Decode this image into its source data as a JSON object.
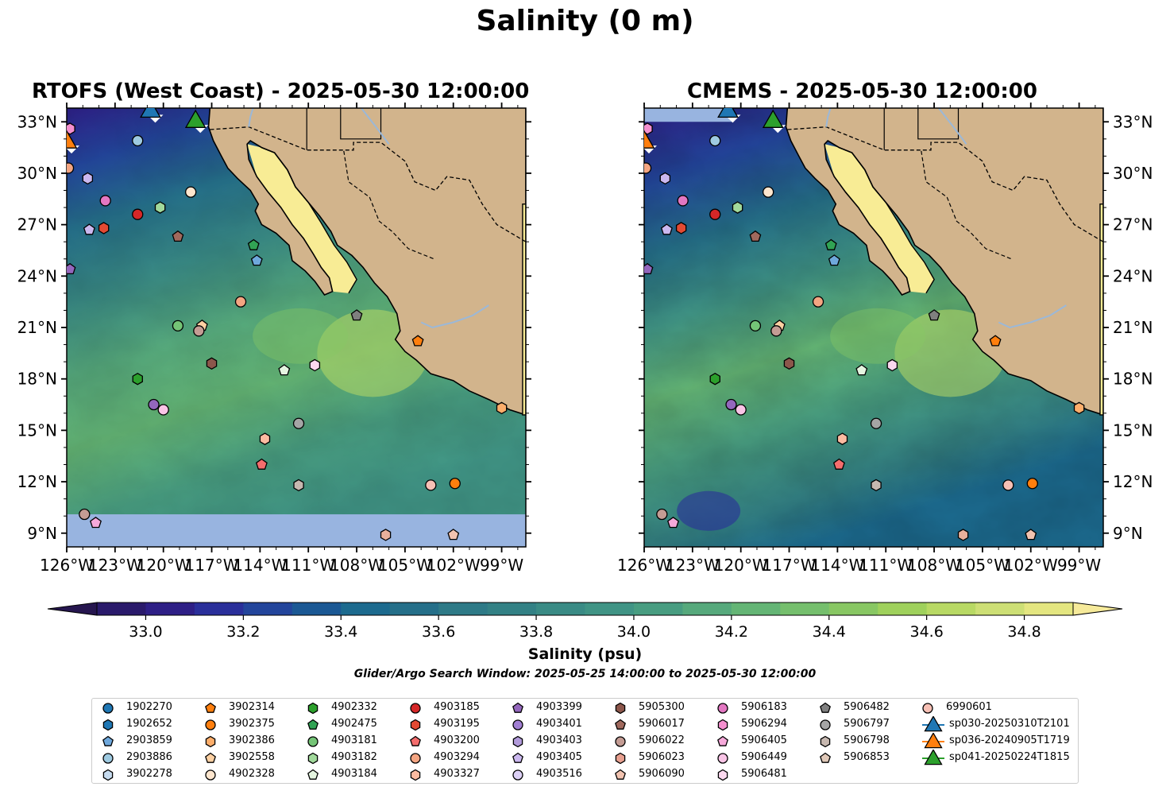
{
  "title": "Salinity (0 m)",
  "panels": [
    {
      "title": "RTOFS (West Coast) - 2025-05-30 12:00:00"
    },
    {
      "title": "CMEMS - 2025-05-30 12:00:00"
    }
  ],
  "axes": {
    "lon_ticks": [
      "126°W",
      "123°W",
      "120°W",
      "117°W",
      "114°W",
      "111°W",
      "108°W",
      "105°W",
      "102°W",
      "99°W"
    ],
    "lon_values": [
      -126,
      -123,
      -120,
      -117,
      -114,
      -111,
      -108,
      -105,
      -102,
      -99
    ],
    "lat_ticks": [
      "9°N",
      "12°N",
      "15°N",
      "18°N",
      "21°N",
      "24°N",
      "27°N",
      "30°N",
      "33°N"
    ],
    "lat_values": [
      9,
      12,
      15,
      18,
      21,
      24,
      27,
      30,
      33
    ],
    "lon_range": [
      -126,
      -97.5
    ],
    "lat_range": [
      8.2,
      33.8
    ]
  },
  "colorbar": {
    "label": "Salinity (psu)",
    "ticks": [
      "33.0",
      "33.2",
      "33.4",
      "33.6",
      "33.8",
      "34.0",
      "34.2",
      "34.4",
      "34.6",
      "34.8"
    ],
    "range": [
      32.9,
      34.9
    ],
    "extend": "both",
    "colors": [
      "#2a1a6b",
      "#2e1f86",
      "#2a2f9a",
      "#23459b",
      "#1b5894",
      "#1c6a8e",
      "#256f89",
      "#2e7a87",
      "#338185",
      "#3a8b85",
      "#409485",
      "#489d81",
      "#56a97c",
      "#64b575",
      "#75bf6d",
      "#88c763",
      "#9fd15c",
      "#b8d964",
      "#cddf75",
      "#e4e680"
    ],
    "extend_low_color": "#26164f",
    "extend_high_color": "#f6ea9a"
  },
  "search_window": "Glider/Argo Search Window: 2025-05-25 14:00:00 to 2025-05-30 12:00:00",
  "chart_data": {
    "type": "scatter",
    "title": "Salinity (0 m)",
    "colors": {
      "land": "#d2b48c",
      "nodata": "#98b4e0",
      "river": "#9bb8d8"
    },
    "legend_placement": "bottom",
    "floats": [
      {
        "id": "1902270",
        "marker": "circle",
        "color": "#1f77b4",
        "lon": null,
        "lat": null
      },
      {
        "id": "1902652",
        "marker": "hexagon",
        "color": "#1f77b4",
        "lon": null,
        "lat": null
      },
      {
        "id": "2903859",
        "marker": "pentagon",
        "color": "#6fa8dc",
        "lon": -114.2,
        "lat": 24.9
      },
      {
        "id": "2903886",
        "marker": "circle",
        "color": "#9ecae1",
        "lon": -121.6,
        "lat": 31.9
      },
      {
        "id": "3902278",
        "marker": "hexagon",
        "color": "#c6dbef",
        "lon": null,
        "lat": null
      },
      {
        "id": "3902314",
        "marker": "pentagon",
        "color": "#ff7f0e",
        "lon": -104.2,
        "lat": 20.2
      },
      {
        "id": "3902375",
        "marker": "circle",
        "color": "#ff7f0e",
        "lon": -101.9,
        "lat": 11.9
      },
      {
        "id": "3902386",
        "marker": "hexagon",
        "color": "#fdae6b",
        "lon": -99.0,
        "lat": 16.3
      },
      {
        "id": "3902558",
        "marker": "pentagon",
        "color": "#fdd0a2",
        "lon": -117.6,
        "lat": 21.1
      },
      {
        "id": "4902328",
        "marker": "circle",
        "color": "#fee6ce",
        "lon": -118.3,
        "lat": 28.9
      },
      {
        "id": "4902332",
        "marker": "hexagon",
        "color": "#2ca02c",
        "lon": -121.6,
        "lat": 18.0
      },
      {
        "id": "4902475",
        "marker": "pentagon",
        "color": "#31a354",
        "lon": -114.4,
        "lat": 25.8
      },
      {
        "id": "4903181",
        "marker": "circle",
        "color": "#74c476",
        "lon": -119.1,
        "lat": 21.1
      },
      {
        "id": "4903182",
        "marker": "hexagon",
        "color": "#a1d99b",
        "lon": -120.2,
        "lat": 28.0
      },
      {
        "id": "4903184",
        "marker": "pentagon",
        "color": "#e5f5e0",
        "lon": -112.5,
        "lat": 18.5
      },
      {
        "id": "4903185",
        "marker": "circle",
        "color": "#d62728",
        "lon": -121.6,
        "lat": 27.6
      },
      {
        "id": "4903195",
        "marker": "hexagon",
        "color": "#e34a33",
        "lon": -123.7,
        "lat": 26.8
      },
      {
        "id": "4903200",
        "marker": "pentagon",
        "color": "#f46d6d",
        "lon": -113.9,
        "lat": 13.0
      },
      {
        "id": "4903294",
        "marker": "circle",
        "color": "#f4a582",
        "lon": -115.2,
        "lat": 22.5
      },
      {
        "id": "4903327",
        "marker": "hexagon",
        "color": "#fcbba1",
        "lon": -113.7,
        "lat": 14.5
      },
      {
        "id": "4903399",
        "marker": "pentagon",
        "color": "#9467bd",
        "lon": -125.8,
        "lat": 24.4
      },
      {
        "id": "4903401",
        "marker": "circle",
        "color": "#a17fd3",
        "lon": null,
        "lat": null
      },
      {
        "id": "4903403",
        "marker": "hexagon",
        "color": "#b29bdb",
        "lon": null,
        "lat": null
      },
      {
        "id": "4903405",
        "marker": "pentagon",
        "color": "#cbb8ef",
        "lon": -124.6,
        "lat": 26.7
      },
      {
        "id": "4903516",
        "marker": "circle",
        "color": "#dcd0f5",
        "lon": null,
        "lat": null
      },
      {
        "id": "5905300",
        "marker": "hexagon",
        "color": "#8c564b",
        "lon": -117.0,
        "lat": 18.9
      },
      {
        "id": "5906017",
        "marker": "pentagon",
        "color": "#a0695d",
        "lon": -119.1,
        "lat": 26.3
      },
      {
        "id": "5906022",
        "marker": "circle",
        "color": "#c49c94",
        "lon": -117.8,
        "lat": 20.8
      },
      {
        "id": "5906023",
        "marker": "hexagon",
        "color": "#e8a090",
        "lon": null,
        "lat": null
      },
      {
        "id": "5906090",
        "marker": "pentagon",
        "color": "#f2c3b0",
        "lon": -102.0,
        "lat": 8.9
      },
      {
        "id": "5906183",
        "marker": "circle",
        "color": "#e377c2",
        "lon": -123.6,
        "lat": 28.4
      },
      {
        "id": "5906294",
        "marker": "hexagon",
        "color": "#f48fcf",
        "lon": -125.8,
        "lat": 32.6
      },
      {
        "id": "5906405",
        "marker": "pentagon",
        "color": "#f6a9da",
        "lon": -124.2,
        "lat": 9.6
      },
      {
        "id": "5906449",
        "marker": "circle",
        "color": "#f9c4e6",
        "lon": -120.0,
        "lat": 16.2
      },
      {
        "id": "5906481",
        "marker": "hexagon",
        "color": "#fcd8ef",
        "lon": -110.6,
        "lat": 18.8
      },
      {
        "id": "5906482",
        "marker": "pentagon",
        "color": "#7f7f7f",
        "lon": -108.0,
        "lat": 21.7
      },
      {
        "id": "5906797",
        "marker": "circle",
        "color": "#a5a5a5",
        "lon": -111.6,
        "lat": 15.4
      },
      {
        "id": "5906798",
        "marker": "hexagon",
        "color": "#c7b8b0",
        "lon": -111.6,
        "lat": 11.8
      },
      {
        "id": "5906853",
        "marker": "pentagon",
        "color": "#e0c8b8",
        "lon": null,
        "lat": null
      },
      {
        "id": "6990601",
        "marker": "circle",
        "color": "#f7c0b5",
        "lon": -103.4,
        "lat": 11.8
      }
    ],
    "extra_points": [
      {
        "marker": "circle",
        "color": "#9467bd",
        "lon": -120.6,
        "lat": 16.5
      },
      {
        "marker": "circle",
        "color": "#f4a582",
        "lon": -125.9,
        "lat": 30.3
      },
      {
        "marker": "circle",
        "color": "#c49c94",
        "lon": -124.9,
        "lat": 10.1
      },
      {
        "marker": "hexagon",
        "color": "#e8b09c",
        "lon": -106.2,
        "lat": 8.9
      },
      {
        "marker": "hexagon",
        "color": "#cbb8ef",
        "lon": -124.7,
        "lat": 29.7
      }
    ],
    "gliders": [
      {
        "id": "sp030-20250310T2101",
        "marker": "triangle",
        "color": "#1f77b4",
        "lon": -120.8,
        "lat": 33.6
      },
      {
        "id": "sp036-20240905T1719",
        "marker": "triangle",
        "color": "#ff7f0e",
        "lon": -126.0,
        "lat": 31.8
      },
      {
        "id": "sp041-20250224T1815",
        "marker": "triangle",
        "color": "#2ca02c",
        "lon": -118.0,
        "lat": 33.0
      }
    ]
  },
  "legend": {
    "columns": [
      [
        "1902270",
        "1902652",
        "2903859",
        "2903886",
        "3902278"
      ],
      [
        "3902314",
        "3902375",
        "3902386",
        "3902558",
        "4902328"
      ],
      [
        "4902332",
        "4902475",
        "4903181",
        "4903182",
        "4903184"
      ],
      [
        "4903185",
        "4903195",
        "4903200",
        "4903294",
        "4903327"
      ],
      [
        "4903399",
        "4903401",
        "4903403",
        "4903405",
        "4903516"
      ],
      [
        "5905300",
        "5906017",
        "5906022",
        "5906023",
        "5906090"
      ],
      [
        "5906183",
        "5906294",
        "5906405",
        "5906449",
        "5906481"
      ],
      [
        "5906482",
        "5906797",
        "5906798",
        "5906853"
      ],
      [
        "6990601",
        "sp030-20250310T2101",
        "sp036-20240905T1719",
        "sp041-20250224T1815"
      ]
    ]
  }
}
